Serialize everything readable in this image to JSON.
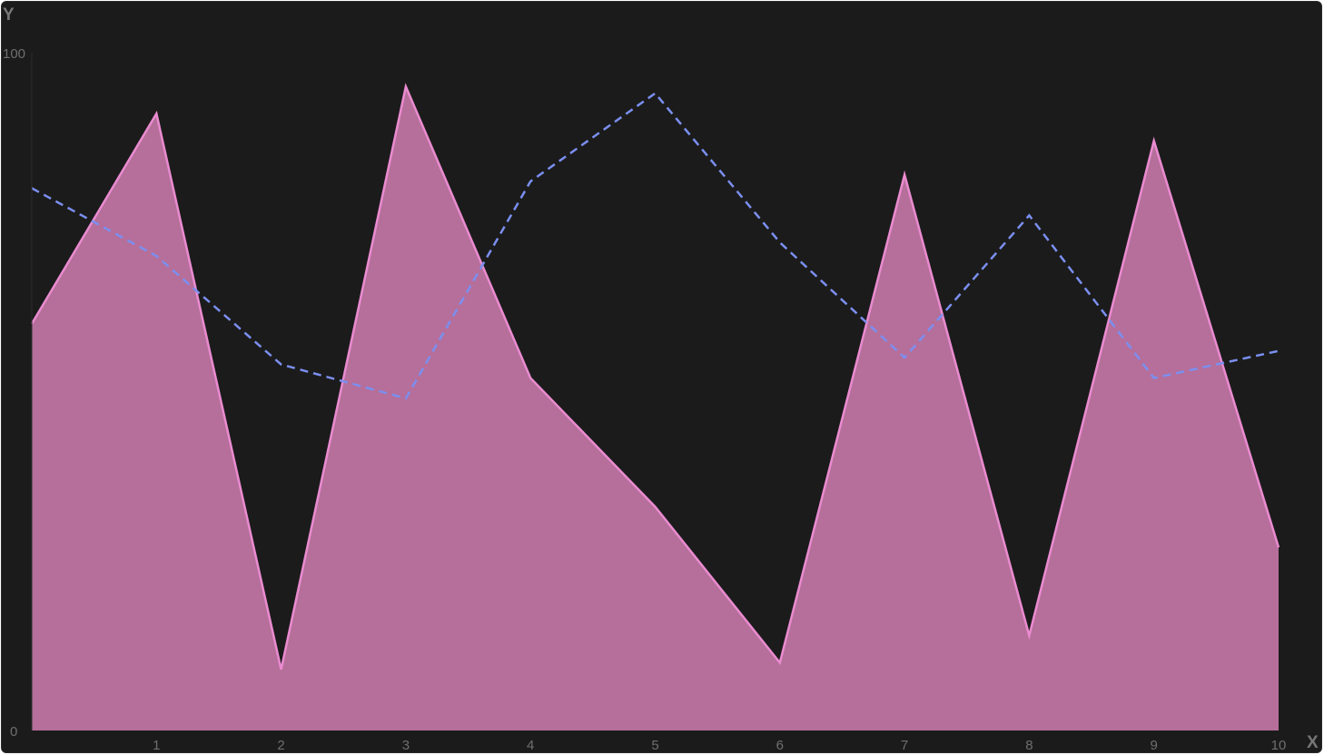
{
  "chart_data": {
    "type": "area",
    "xlabel": "X",
    "ylabel": "Y",
    "xlim": [
      0,
      10
    ],
    "ylim": [
      0,
      100
    ],
    "x": [
      0,
      1,
      2,
      3,
      4,
      5,
      6,
      7,
      8,
      9,
      10
    ],
    "x_ticks": [
      "1",
      "2",
      "3",
      "4",
      "5",
      "6",
      "7",
      "8",
      "9",
      "10"
    ],
    "y_ticks": [
      "0",
      "100"
    ],
    "grid": false,
    "legend": "none",
    "series": [
      {
        "style": "area",
        "color": "#ea8bd0",
        "fill": "#b56f9a",
        "values": [
          60,
          91,
          9,
          95,
          52,
          33,
          10,
          82,
          14,
          87,
          27
        ]
      },
      {
        "style": "dashed-line",
        "color": "#7b8ff0",
        "values": [
          80,
          70,
          54,
          49,
          81,
          94,
          72,
          55,
          76,
          52,
          56
        ]
      }
    ]
  }
}
